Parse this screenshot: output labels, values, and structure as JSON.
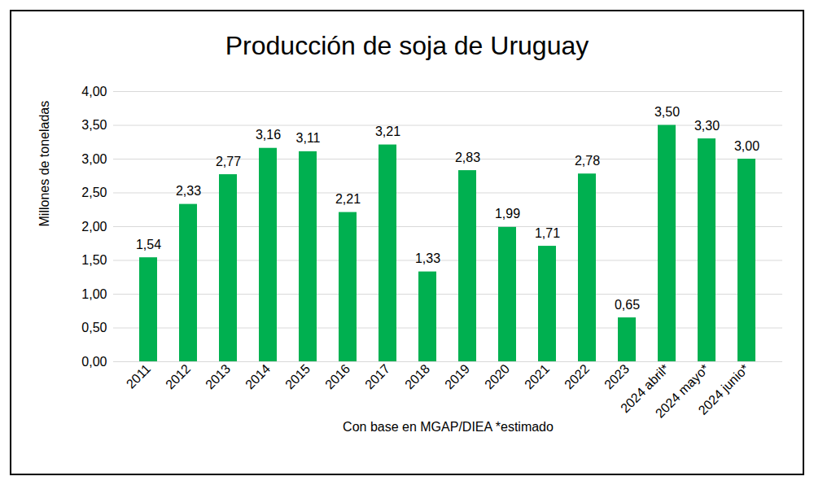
{
  "chart_data": {
    "type": "bar",
    "title": "Producción de soja de Uruguay",
    "x_label": "Con base en MGAP/DIEA *estimado",
    "y_label": "Millones de toneladas",
    "categories": [
      "2011",
      "2012",
      "2013",
      "2014",
      "2015",
      "2016",
      "2017",
      "2018",
      "2019",
      "2020",
      "2021",
      "2022",
      "2023",
      "2024 abril*",
      "2024 mayo*",
      "2024 junio*"
    ],
    "values": [
      1.54,
      2.33,
      2.77,
      3.16,
      3.11,
      2.21,
      3.21,
      1.33,
      2.83,
      1.99,
      1.71,
      2.78,
      0.65,
      3.5,
      3.3,
      3.0
    ],
    "value_labels": [
      "1,54",
      "2,33",
      "2,77",
      "3,16",
      "3,11",
      "2,21",
      "3,21",
      "1,33",
      "2,83",
      "1,99",
      "1,71",
      "2,78",
      "0,65",
      "3,50",
      "3,30",
      "3,00"
    ],
    "color": "#00b050",
    "ylim": [
      0,
      4
    ],
    "yticks": [
      {
        "value": 0,
        "label": "0,00"
      },
      {
        "value": 0.5,
        "label": "0,50"
      },
      {
        "value": 1,
        "label": "1,00"
      },
      {
        "value": 1.5,
        "label": "1,50"
      },
      {
        "value": 2,
        "label": "2,00"
      },
      {
        "value": 2.5,
        "label": "2,50"
      },
      {
        "value": 3,
        "label": "3,00"
      },
      {
        "value": 3.5,
        "label": "3,50"
      },
      {
        "value": 4,
        "label": "4,00"
      }
    ],
    "grid": true,
    "data_labels": true
  }
}
